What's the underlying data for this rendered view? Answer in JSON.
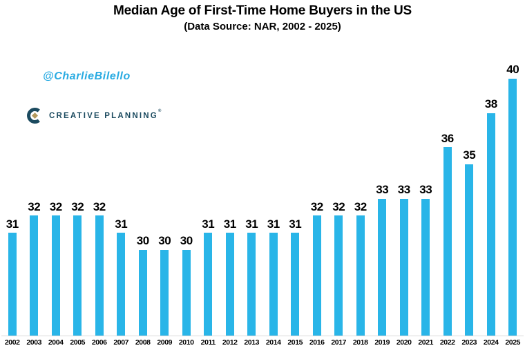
{
  "header": {
    "title": "Median Age of First-Time Home Buyers in the US",
    "subtitle": "(Data Source: NAR, 2002 - 2025)"
  },
  "watermark": "@CharlieBilello",
  "logo": {
    "text": "CREATIVE PLANNING",
    "mark": "®"
  },
  "colors": {
    "bar": "#29B5E8",
    "watermark": "#29ABE2",
    "logo_navy": "#1B4A5F",
    "logo_gold": "#B3995D",
    "axis_line": "#D9D9D9",
    "text": "#000000"
  },
  "chart_data": {
    "type": "bar",
    "title": "Median Age of First-Time Home Buyers in the US",
    "subtitle": "(Data Source: NAR, 2002 - 2025)",
    "categories": [
      "2002",
      "2003",
      "2004",
      "2005",
      "2006",
      "2007",
      "2008",
      "2009",
      "2010",
      "2011",
      "2012",
      "2013",
      "2014",
      "2015",
      "2016",
      "2017",
      "2018",
      "2019",
      "2020",
      "2021",
      "2022",
      "2023",
      "2024",
      "2025"
    ],
    "values": [
      31,
      32,
      32,
      32,
      32,
      31,
      30,
      30,
      30,
      31,
      31,
      31,
      31,
      31,
      32,
      32,
      32,
      33,
      33,
      33,
      36,
      35,
      38,
      40
    ],
    "xlabel": "",
    "ylabel": "",
    "ylim": [
      25,
      40
    ],
    "value_labels": true,
    "grid": false,
    "legend": false,
    "y_axis_visible": false
  }
}
